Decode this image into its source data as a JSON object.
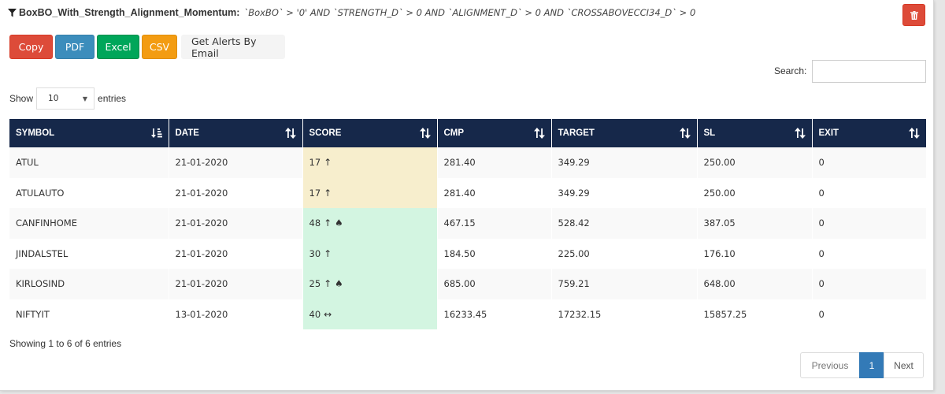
{
  "scan": {
    "name": "BoxBO_With_Strength_Alignment_Momentum:",
    "query": "`BoxBO` > '0' AND `STRENGTH_D` > 0 AND `ALIGNMENT_D` > 0 AND `CROSSABOVECCI34_D` > 0"
  },
  "toolbar": {
    "copy_label": "Copy",
    "pdf_label": "PDF",
    "excel_label": "Excel",
    "csv_label": "CSV",
    "alerts_label": "Get Alerts By Email"
  },
  "search": {
    "label": "Search:",
    "value": ""
  },
  "length": {
    "show_label": "Show",
    "value": "10",
    "entries_label": "entries"
  },
  "table": {
    "columns": [
      "SYMBOL",
      "DATE",
      "SCORE",
      "CMP",
      "TARGET",
      "SL",
      "EXIT"
    ],
    "rows": [
      {
        "symbol": "ATUL",
        "date": "21-01-2020",
        "score": "17",
        "score_icons": "↑",
        "cmp": "281.40",
        "target": "349.29",
        "sl": "250.00",
        "exit": "0",
        "score_tone": "low"
      },
      {
        "symbol": "ATULAUTO",
        "date": "21-01-2020",
        "score": "17",
        "score_icons": "↑",
        "cmp": "281.40",
        "target": "349.29",
        "sl": "250.00",
        "exit": "0",
        "score_tone": "low"
      },
      {
        "symbol": "CANFINHOME",
        "date": "21-01-2020",
        "score": "48",
        "score_icons": "↑ ♠",
        "cmp": "467.15",
        "target": "528.42",
        "sl": "387.05",
        "exit": "0",
        "score_tone": "high"
      },
      {
        "symbol": "JINDALSTEL",
        "date": "21-01-2020",
        "score": "30",
        "score_icons": "↑",
        "cmp": "184.50",
        "target": "225.00",
        "sl": "176.10",
        "exit": "0",
        "score_tone": "high"
      },
      {
        "symbol": "KIRLOSIND",
        "date": "21-01-2020",
        "score": "25",
        "score_icons": "↑ ♠",
        "cmp": "685.00",
        "target": "759.21",
        "sl": "648.00",
        "exit": "0",
        "score_tone": "high"
      },
      {
        "symbol": "NIFTYIT",
        "date": "13-01-2020",
        "score": "40",
        "score_icons": "↔",
        "cmp": "16233.45",
        "target": "17232.15",
        "sl": "15857.25",
        "exit": "0",
        "score_tone": "high"
      }
    ]
  },
  "info": {
    "text": "Showing 1 to 6 of 6 entries"
  },
  "pagination": {
    "previous_label": "Previous",
    "current_page": "1",
    "next_label": "Next"
  },
  "colors": {
    "header_bg": "#16284a",
    "score_low_bg": "#f7eecd",
    "score_high_bg": "#d3f5e1",
    "danger": "#dd4b39",
    "primary": "#3c8dbc",
    "success": "#00a65a",
    "warning": "#f39c12"
  },
  "icons": {
    "filter": "filter-icon",
    "delete": "trash-icon",
    "sort_symbol": "sort-alpha-asc-icon",
    "sort_other": "sort-icon",
    "up": "arrow-up",
    "spade": "spade",
    "sideways": "arrows-h"
  }
}
